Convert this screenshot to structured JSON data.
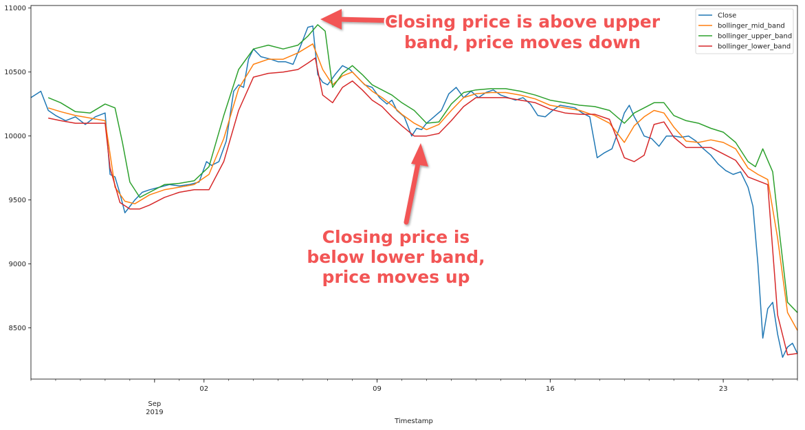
{
  "chart_data": {
    "type": "line",
    "xlabel": "Timestamp",
    "ylabel": "",
    "title": "",
    "x_range_days": [
      -5.0,
      26.0
    ],
    "ylim": [
      8100,
      11020
    ],
    "x_ticks": [
      {
        "day": 2,
        "label": "02"
      },
      {
        "day": 9,
        "label": "09"
      },
      {
        "day": 16,
        "label": "16"
      },
      {
        "day": 23,
        "label": "23"
      }
    ],
    "x_month_label": {
      "day": 0,
      "month": "Sep",
      "year": "2019"
    },
    "y_ticks": [
      {
        "value": 8500,
        "label": "8500"
      },
      {
        "value": 9000,
        "label": "9000"
      },
      {
        "value": 9500,
        "label": "9500"
      },
      {
        "value": 10000,
        "label": "10000"
      },
      {
        "value": 10500,
        "label": "10500"
      },
      {
        "value": 11000,
        "label": "11000"
      }
    ],
    "legend_position": "upper right",
    "grid": false,
    "series": [
      {
        "name": "Close",
        "color": "#1f77b4",
        "x": [
          -5.0,
          -4.6,
          -4.3,
          -4.0,
          -3.6,
          -3.2,
          -2.8,
          -2.4,
          -2.0,
          -1.8,
          -1.6,
          -1.4,
          -1.2,
          -1.0,
          -0.8,
          -0.5,
          -0.2,
          0.2,
          0.6,
          1.0,
          1.4,
          1.8,
          2.1,
          2.3,
          2.6,
          2.9,
          3.2,
          3.4,
          3.6,
          3.8,
          4.0,
          4.3,
          4.7,
          5.0,
          5.3,
          5.6,
          5.9,
          6.2,
          6.4,
          6.6,
          6.8,
          7.0,
          7.3,
          7.6,
          7.9,
          8.2,
          8.5,
          8.8,
          9.1,
          9.4,
          9.6,
          9.8,
          10.1,
          10.4,
          10.6,
          10.8,
          11.0,
          11.3,
          11.6,
          11.9,
          12.2,
          12.5,
          12.8,
          13.1,
          13.4,
          13.7,
          14.0,
          14.3,
          14.6,
          14.9,
          15.2,
          15.5,
          15.8,
          16.1,
          16.4,
          16.7,
          17.0,
          17.3,
          17.6,
          17.9,
          18.2,
          18.5,
          18.8,
          19.0,
          19.2,
          19.4,
          19.6,
          19.8,
          20.1,
          20.4,
          20.7,
          21.0,
          21.3,
          21.6,
          21.9,
          22.2,
          22.5,
          22.8,
          23.1,
          23.4,
          23.7,
          24.0,
          24.2,
          24.4,
          24.6,
          24.8,
          25.0,
          25.2,
          25.4,
          25.6,
          25.8,
          26.0
        ],
        "values": [
          10300,
          10350,
          10200,
          10160,
          10120,
          10150,
          10090,
          10150,
          10180,
          9700,
          9680,
          9550,
          9400,
          9450,
          9500,
          9560,
          9580,
          9600,
          9620,
          9610,
          9620,
          9640,
          9800,
          9770,
          9800,
          9960,
          10350,
          10400,
          10380,
          10600,
          10680,
          10620,
          10600,
          10580,
          10580,
          10560,
          10700,
          10850,
          10860,
          10480,
          10420,
          10400,
          10480,
          10550,
          10520,
          10460,
          10400,
          10380,
          10300,
          10250,
          10280,
          10200,
          10150,
          10000,
          10060,
          10050,
          10100,
          10150,
          10200,
          10330,
          10380,
          10300,
          10350,
          10300,
          10340,
          10360,
          10320,
          10300,
          10280,
          10300,
          10250,
          10160,
          10150,
          10200,
          10240,
          10230,
          10220,
          10180,
          10150,
          9830,
          9870,
          9900,
          10060,
          10180,
          10240,
          10150,
          10080,
          10000,
          9980,
          9920,
          10000,
          10000,
          9990,
          10000,
          9960,
          9900,
          9850,
          9780,
          9730,
          9700,
          9720,
          9600,
          9450,
          9000,
          8420,
          8650,
          8700,
          8450,
          8270,
          8350,
          8380,
          8300
        ]
      },
      {
        "name": "bollinger_mid_band",
        "color": "#ff7f0e",
        "x": [
          -4.3,
          -3.8,
          -3.2,
          -2.6,
          -2.0,
          -1.6,
          -1.2,
          -0.8,
          -0.2,
          0.4,
          1.0,
          1.6,
          2.2,
          2.8,
          3.4,
          4.0,
          4.6,
          5.2,
          5.8,
          6.4,
          6.8,
          7.2,
          7.6,
          8.0,
          8.4,
          8.8,
          9.2,
          9.6,
          10.0,
          10.5,
          11.0,
          11.5,
          12.0,
          12.5,
          13.0,
          13.6,
          14.2,
          14.8,
          15.4,
          16.0,
          16.6,
          17.2,
          17.8,
          18.4,
          19.0,
          19.4,
          19.8,
          20.2,
          20.6,
          21.0,
          21.5,
          22.0,
          22.5,
          23.0,
          23.5,
          24.0,
          24.4,
          24.8,
          25.2,
          25.6,
          26.0
        ],
        "values": [
          10220,
          10190,
          10160,
          10140,
          10120,
          9600,
          9490,
          9470,
          9540,
          9580,
          9600,
          9620,
          9700,
          9980,
          10370,
          10560,
          10600,
          10600,
          10650,
          10720,
          10520,
          10400,
          10470,
          10500,
          10420,
          10350,
          10300,
          10240,
          10170,
          10100,
          10050,
          10090,
          10200,
          10300,
          10330,
          10340,
          10340,
          10320,
          10290,
          10240,
          10220,
          10200,
          10160,
          10100,
          9950,
          10080,
          10150,
          10200,
          10180,
          10070,
          9960,
          9950,
          9970,
          9950,
          9900,
          9750,
          9700,
          9660,
          9200,
          8620,
          8480
        ]
      },
      {
        "name": "bollinger_upper_band",
        "color": "#2ca02c",
        "x": [
          -4.3,
          -3.8,
          -3.2,
          -2.6,
          -2.0,
          -1.6,
          -1.3,
          -1.0,
          -0.6,
          -0.2,
          0.4,
          1.0,
          1.6,
          2.2,
          2.8,
          3.4,
          4.0,
          4.6,
          5.2,
          5.8,
          6.2,
          6.6,
          6.9,
          7.2,
          7.6,
          8.0,
          8.4,
          8.8,
          9.2,
          9.6,
          10.0,
          10.5,
          11.0,
          11.5,
          12.0,
          12.5,
          13.0,
          13.6,
          14.2,
          14.8,
          15.4,
          16.0,
          16.6,
          17.2,
          17.8,
          18.4,
          19.0,
          19.4,
          19.8,
          20.2,
          20.6,
          21.0,
          21.5,
          22.0,
          22.5,
          23.0,
          23.5,
          24.0,
          24.3,
          24.6,
          25.0,
          25.3,
          25.6,
          26.0
        ],
        "values": [
          10300,
          10260,
          10190,
          10180,
          10250,
          10220,
          9950,
          9640,
          9520,
          9560,
          9620,
          9630,
          9650,
          9760,
          10160,
          10520,
          10680,
          10710,
          10680,
          10710,
          10780,
          10870,
          10820,
          10380,
          10490,
          10550,
          10480,
          10400,
          10360,
          10320,
          10260,
          10200,
          10100,
          10110,
          10250,
          10340,
          10360,
          10370,
          10370,
          10350,
          10320,
          10280,
          10260,
          10240,
          10230,
          10200,
          10100,
          10180,
          10220,
          10260,
          10260,
          10160,
          10120,
          10100,
          10060,
          10030,
          9950,
          9800,
          9760,
          9900,
          9720,
          9200,
          8700,
          8620
        ]
      },
      {
        "name": "bollinger_lower_band",
        "color": "#d62728",
        "x": [
          -4.3,
          -3.8,
          -3.2,
          -2.6,
          -2.0,
          -1.8,
          -1.4,
          -1.0,
          -0.6,
          -0.2,
          0.4,
          1.0,
          1.6,
          2.2,
          2.8,
          3.4,
          4.0,
          4.6,
          5.2,
          5.8,
          6.2,
          6.5,
          6.8,
          7.2,
          7.6,
          8.0,
          8.4,
          8.8,
          9.2,
          9.6,
          10.0,
          10.5,
          11.0,
          11.5,
          12.0,
          12.5,
          13.0,
          13.6,
          14.2,
          14.8,
          15.4,
          16.0,
          16.6,
          17.2,
          17.8,
          18.4,
          19.0,
          19.4,
          19.8,
          20.2,
          20.6,
          21.0,
          21.5,
          22.0,
          22.5,
          23.0,
          23.5,
          24.0,
          24.4,
          24.8,
          25.2,
          25.6,
          26.0
        ],
        "values": [
          10140,
          10120,
          10100,
          10100,
          10100,
          9750,
          9480,
          9430,
          9430,
          9460,
          9520,
          9560,
          9580,
          9580,
          9800,
          10200,
          10460,
          10490,
          10500,
          10520,
          10570,
          10610,
          10320,
          10260,
          10380,
          10430,
          10360,
          10280,
          10230,
          10150,
          10080,
          10000,
          10000,
          10020,
          10120,
          10230,
          10300,
          10300,
          10300,
          10280,
          10260,
          10210,
          10180,
          10170,
          10170,
          10130,
          9830,
          9800,
          9850,
          10090,
          10110,
          9990,
          9910,
          9910,
          9910,
          9860,
          9810,
          9680,
          9650,
          9620,
          8600,
          8290,
          8300
        ]
      }
    ],
    "annotations": [
      {
        "lines": [
          "Closing price is above upper",
          "band, price moves down"
        ]
      },
      {
        "lines": [
          "Closing price is",
          "below lower band,",
          "price moves up"
        ]
      }
    ]
  }
}
